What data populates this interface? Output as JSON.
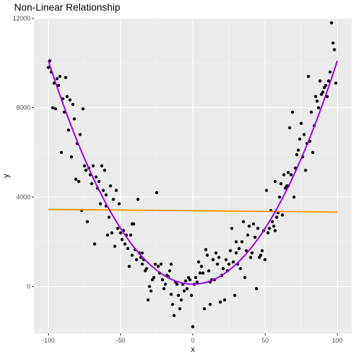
{
  "chart_data": {
    "type": "scatter",
    "title": "Non-Linear Relationship",
    "xlabel": "x",
    "ylabel": "y",
    "xlim": [
      -110,
      110
    ],
    "ylim": [
      -2100,
      12000
    ],
    "xticks": [
      -100,
      -50,
      0,
      50,
      100
    ],
    "yticks": [
      0,
      4000,
      8000,
      12000
    ],
    "grid": true,
    "colors": {
      "panel": "#ebebeb",
      "grid_major": "#ffffff",
      "points": "#000000",
      "linear_fit": "#ff9900",
      "quadratic_fit": "#9900ee"
    },
    "linear_fit": {
      "x": [
        -100,
        100
      ],
      "y": [
        3450,
        3330
      ]
    },
    "quadratic_fit": {
      "a": 1.0,
      "b": 0.0,
      "c": 100,
      "x_range": [
        -100,
        100
      ]
    },
    "points": [
      {
        "x": -100,
        "y": 9800
      },
      {
        "x": -99,
        "y": 10100
      },
      {
        "x": -98,
        "y": 9600
      },
      {
        "x": -97,
        "y": 8000
      },
      {
        "x": -96,
        "y": 9100
      },
      {
        "x": -95,
        "y": 7950
      },
      {
        "x": -94,
        "y": 9300
      },
      {
        "x": -93,
        "y": 9000
      },
      {
        "x": -92,
        "y": 9400
      },
      {
        "x": -91,
        "y": 6000
      },
      {
        "x": -90,
        "y": 8400
      },
      {
        "x": -89,
        "y": 7800
      },
      {
        "x": -88,
        "y": 9350
      },
      {
        "x": -87,
        "y": 8500
      },
      {
        "x": -86,
        "y": 7000
      },
      {
        "x": -85,
        "y": 8350
      },
      {
        "x": -84,
        "y": 5800
      },
      {
        "x": -83,
        "y": 8150
      },
      {
        "x": -82,
        "y": 7500
      },
      {
        "x": -81,
        "y": 4800
      },
      {
        "x": -80,
        "y": 6400
      },
      {
        "x": -79,
        "y": 4700
      },
      {
        "x": -78,
        "y": 6800
      },
      {
        "x": -77,
        "y": 3400
      },
      {
        "x": -76,
        "y": 7950
      },
      {
        "x": -75,
        "y": 5400
      },
      {
        "x": -74,
        "y": 5200
      },
      {
        "x": -73,
        "y": 2900
      },
      {
        "x": -72,
        "y": 5300
      },
      {
        "x": -71,
        "y": 5000
      },
      {
        "x": -70,
        "y": 4600
      },
      {
        "x": -69,
        "y": 5400
      },
      {
        "x": -68,
        "y": 1900
      },
      {
        "x": -67,
        "y": 4900
      },
      {
        "x": -66,
        "y": 4400
      },
      {
        "x": -65,
        "y": 4700
      },
      {
        "x": -64,
        "y": 3700
      },
      {
        "x": -63,
        "y": 5400
      },
      {
        "x": -62,
        "y": 4300
      },
      {
        "x": -61,
        "y": 5200
      },
      {
        "x": -60,
        "y": 3600
      },
      {
        "x": -59,
        "y": 2300
      },
      {
        "x": -58,
        "y": 3100
      },
      {
        "x": -57,
        "y": 4500
      },
      {
        "x": -56,
        "y": 2400
      },
      {
        "x": -55,
        "y": 3900
      },
      {
        "x": -54,
        "y": 1800
      },
      {
        "x": -53,
        "y": 4300
      },
      {
        "x": -52,
        "y": 2600
      },
      {
        "x": -51,
        "y": 3700
      },
      {
        "x": -50,
        "y": 2400
      },
      {
        "x": -49,
        "y": 2100
      },
      {
        "x": -48,
        "y": 2500
      },
      {
        "x": -47,
        "y": 1900
      },
      {
        "x": -46,
        "y": 2300
      },
      {
        "x": -45,
        "y": 1700
      },
      {
        "x": -44,
        "y": 900
      },
      {
        "x": -43,
        "y": 2300
      },
      {
        "x": -42,
        "y": 1400
      },
      {
        "x": -41,
        "y": 2800
      },
      {
        "x": -40,
        "y": 1650
      },
      {
        "x": -39,
        "y": 1200
      },
      {
        "x": -38,
        "y": 3900
      },
      {
        "x": -37,
        "y": 1500
      },
      {
        "x": -36,
        "y": 1300
      },
      {
        "x": -35,
        "y": 1000
      },
      {
        "x": -34,
        "y": 1200
      },
      {
        "x": -33,
        "y": 700
      },
      {
        "x": -32,
        "y": 800
      },
      {
        "x": -31,
        "y": -600
      },
      {
        "x": -30,
        "y": 0
      },
      {
        "x": -29,
        "y": -200
      },
      {
        "x": -28,
        "y": 300
      },
      {
        "x": -27,
        "y": 400
      },
      {
        "x": -26,
        "y": 1000
      },
      {
        "x": -25,
        "y": 4200
      },
      {
        "x": -24,
        "y": 900
      },
      {
        "x": -23,
        "y": 600
      },
      {
        "x": -22,
        "y": 1000
      },
      {
        "x": -21,
        "y": 300
      },
      {
        "x": -20,
        "y": -100
      },
      {
        "x": -19,
        "y": 100
      },
      {
        "x": -18,
        "y": 500
      },
      {
        "x": -17,
        "y": 450
      },
      {
        "x": -16,
        "y": 700
      },
      {
        "x": -15,
        "y": -350
      },
      {
        "x": -14,
        "y": -800
      },
      {
        "x": -13,
        "y": -1300
      },
      {
        "x": -12,
        "y": 200
      },
      {
        "x": -11,
        "y": 100
      },
      {
        "x": -10,
        "y": -400
      },
      {
        "x": -9,
        "y": -1000
      },
      {
        "x": -8,
        "y": -600
      },
      {
        "x": -7,
        "y": 100
      },
      {
        "x": -6,
        "y": -200
      },
      {
        "x": -5,
        "y": 250
      },
      {
        "x": -4,
        "y": -100
      },
      {
        "x": -3,
        "y": 400
      },
      {
        "x": -2,
        "y": 300
      },
      {
        "x": -1,
        "y": -400
      },
      {
        "x": 0,
        "y": -1800
      },
      {
        "x": 1,
        "y": 100
      },
      {
        "x": 2,
        "y": 400
      },
      {
        "x": 3,
        "y": 200
      },
      {
        "x": 4,
        "y": 1100
      },
      {
        "x": 5,
        "y": 600
      },
      {
        "x": 6,
        "y": 900
      },
      {
        "x": 7,
        "y": 600
      },
      {
        "x": 8,
        "y": -1000
      },
      {
        "x": 9,
        "y": 1650
      },
      {
        "x": 10,
        "y": 1400
      },
      {
        "x": 11,
        "y": 700
      },
      {
        "x": 12,
        "y": -800
      },
      {
        "x": 13,
        "y": 300
      },
      {
        "x": 14,
        "y": 1200
      },
      {
        "x": 15,
        "y": 300
      },
      {
        "x": 16,
        "y": 1500
      },
      {
        "x": 17,
        "y": 1000
      },
      {
        "x": 18,
        "y": 1300
      },
      {
        "x": 19,
        "y": -700
      },
      {
        "x": 20,
        "y": 500
      },
      {
        "x": 21,
        "y": 800
      },
      {
        "x": 22,
        "y": -600
      },
      {
        "x": 23,
        "y": 1200
      },
      {
        "x": 24,
        "y": 700
      },
      {
        "x": 25,
        "y": 1000
      },
      {
        "x": 26,
        "y": 1600
      },
      {
        "x": 27,
        "y": 2600
      },
      {
        "x": 28,
        "y": 1100
      },
      {
        "x": 29,
        "y": -400
      },
      {
        "x": 30,
        "y": 1500
      },
      {
        "x": 31,
        "y": 1000
      },
      {
        "x": 32,
        "y": 1700
      },
      {
        "x": 33,
        "y": 800
      },
      {
        "x": 34,
        "y": 2000
      },
      {
        "x": 35,
        "y": 2900
      },
      {
        "x": 36,
        "y": 400
      },
      {
        "x": 37,
        "y": 1600
      },
      {
        "x": 38,
        "y": 2300
      },
      {
        "x": 39,
        "y": 2700
      },
      {
        "x": 40,
        "y": 1300
      },
      {
        "x": 41,
        "y": 1500
      },
      {
        "x": 42,
        "y": 2800
      },
      {
        "x": 43,
        "y": 2200
      },
      {
        "x": 44,
        "y": -100
      },
      {
        "x": 45,
        "y": 2600
      },
      {
        "x": 46,
        "y": 1300
      },
      {
        "x": 47,
        "y": 1400
      },
      {
        "x": 48,
        "y": 1600
      },
      {
        "x": 49,
        "y": 2500
      },
      {
        "x": 50,
        "y": 1200
      },
      {
        "x": 51,
        "y": 4300
      },
      {
        "x": 52,
        "y": 2400
      },
      {
        "x": 53,
        "y": 2600
      },
      {
        "x": 54,
        "y": 3400
      },
      {
        "x": 55,
        "y": 2900
      },
      {
        "x": 56,
        "y": 2700
      },
      {
        "x": 57,
        "y": 4700
      },
      {
        "x": 58,
        "y": 3100
      },
      {
        "x": 59,
        "y": 3300
      },
      {
        "x": 60,
        "y": 4000
      },
      {
        "x": 61,
        "y": 4600
      },
      {
        "x": 62,
        "y": 3200
      },
      {
        "x": 63,
        "y": 5000
      },
      {
        "x": 64,
        "y": 4400
      },
      {
        "x": 65,
        "y": 4500
      },
      {
        "x": 66,
        "y": 5100
      },
      {
        "x": 67,
        "y": 7100
      },
      {
        "x": 68,
        "y": 5000
      },
      {
        "x": 69,
        "y": 7800
      },
      {
        "x": 70,
        "y": 4000
      },
      {
        "x": 71,
        "y": 5300
      },
      {
        "x": 72,
        "y": 5900
      },
      {
        "x": 73,
        "y": 6100
      },
      {
        "x": 74,
        "y": 6600
      },
      {
        "x": 75,
        "y": 7300
      },
      {
        "x": 76,
        "y": 5800
      },
      {
        "x": 77,
        "y": 6800
      },
      {
        "x": 78,
        "y": 5200
      },
      {
        "x": 79,
        "y": 6400
      },
      {
        "x": 80,
        "y": 9400
      },
      {
        "x": 81,
        "y": 6500
      },
      {
        "x": 82,
        "y": 7800
      },
      {
        "x": 83,
        "y": 6000
      },
      {
        "x": 84,
        "y": 7200
      },
      {
        "x": 85,
        "y": 8500
      },
      {
        "x": 86,
        "y": 8300
      },
      {
        "x": 87,
        "y": 8000
      },
      {
        "x": 88,
        "y": 9200
      },
      {
        "x": 89,
        "y": 8600
      },
      {
        "x": 90,
        "y": 8700
      },
      {
        "x": 91,
        "y": 8900
      },
      {
        "x": 92,
        "y": 9000
      },
      {
        "x": 93,
        "y": 8500
      },
      {
        "x": 94,
        "y": 9200
      },
      {
        "x": 95,
        "y": 9600
      },
      {
        "x": 96,
        "y": 11800
      },
      {
        "x": 97,
        "y": 10900
      },
      {
        "x": 98,
        "y": 10600
      },
      {
        "x": 99,
        "y": 9100
      },
      {
        "x": -42,
        "y": 2800
      },
      {
        "x": 57,
        "y": 2500
      },
      {
        "x": -15,
        "y": 1000
      },
      {
        "x": 12,
        "y": 200
      },
      {
        "x": -35,
        "y": 1500
      },
      {
        "x": 30,
        "y": 2000
      },
      {
        "x": -60,
        "y": 4100
      },
      {
        "x": 66,
        "y": 4500
      }
    ]
  }
}
